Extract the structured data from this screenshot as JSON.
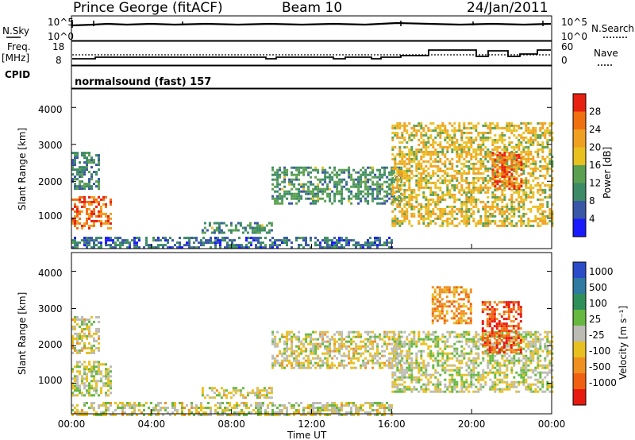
{
  "header": {
    "station": "Prince George (fitACF)",
    "beam": "Beam 10",
    "date": "24/Jan/2011"
  },
  "noise_panel": {
    "left_label": "N.Sky",
    "right_label": "N.Search",
    "left_ticks": [
      "10^5",
      "10^0"
    ],
    "right_ticks": [
      "10^5",
      "10^0"
    ]
  },
  "freq_panel": {
    "left_label_1": "Freq.",
    "left_label_2": "[MHz]",
    "right_label": "Nave",
    "left_ticks": [
      "18",
      "8"
    ],
    "right_ticks": [
      "60",
      "0"
    ]
  },
  "cpid_panel": {
    "label": "CPID",
    "program": "normalsound (fast) 157"
  },
  "axes": {
    "ylabel": "Slant Range [km]",
    "yticks": [
      "1000",
      "2000",
      "3000",
      "4000"
    ],
    "xticks": [
      "00:00",
      "04:00",
      "08:00",
      "12:00",
      "16:00",
      "20:00",
      "00:00"
    ],
    "xlabel": "Time UT"
  },
  "power_colorbar": {
    "label": "Power [dB]",
    "ticks": [
      "4",
      "8",
      "12",
      "16",
      "20",
      "24",
      "28"
    ],
    "colors": [
      "#1a1aff",
      "#3a56a6",
      "#3c8a66",
      "#5aa050",
      "#e8c020",
      "#f0a020",
      "#f07010",
      "#e82010"
    ]
  },
  "velocity_colorbar": {
    "label": "Velocity [m s⁻¹]",
    "ticks": [
      "1000",
      "500",
      "100",
      "25",
      "-25",
      "-100",
      "-500",
      "-1000"
    ],
    "colors": [
      "#2a4cc8",
      "#2e7aa0",
      "#2f8f5a",
      "#66b840",
      "#bcbcb4",
      "#e8c020",
      "#f09020",
      "#f06010",
      "#e81a10"
    ]
  },
  "chart_data": [
    {
      "type": "heatmap",
      "title": "Power",
      "xlabel": "Time UT",
      "ylabel": "Slant Range [km]",
      "xlim": [
        "00:00",
        "24:00"
      ],
      "ylim": [
        180,
        4500
      ],
      "colorbar": "Power [dB]",
      "clim": [
        0,
        30
      ],
      "echo_regions": [
        {
          "t_start": 0.0,
          "t_end": 2.0,
          "r_start": 700,
          "r_end": 1600,
          "value": 26
        },
        {
          "t_start": 0.0,
          "t_end": 1.4,
          "r_start": 1800,
          "r_end": 2800,
          "value": 8
        },
        {
          "t_start": 0.0,
          "t_end": 16.0,
          "r_start": 180,
          "r_end": 500,
          "value": 6
        },
        {
          "t_start": 6.5,
          "t_end": 10.0,
          "r_start": 600,
          "r_end": 900,
          "value": 10
        },
        {
          "t_start": 10.0,
          "t_end": 16.5,
          "r_start": 1400,
          "r_end": 2400,
          "value": 10
        },
        {
          "t_start": 16.0,
          "t_end": 24.0,
          "r_start": 800,
          "r_end": 3600,
          "value": 18
        },
        {
          "t_start": 21.0,
          "t_end": 22.5,
          "r_start": 1800,
          "r_end": 2800,
          "value": 26
        }
      ]
    },
    {
      "type": "heatmap",
      "title": "Velocity",
      "xlabel": "Time UT",
      "ylabel": "Slant Range [km]",
      "xlim": [
        "00:00",
        "24:00"
      ],
      "ylim": [
        180,
        4500
      ],
      "colorbar": "Velocity [m s⁻¹]",
      "clim": [
        -1000,
        1000
      ],
      "echo_regions": [
        {
          "t_start": 0.0,
          "t_end": 2.0,
          "r_start": 700,
          "r_end": 1600,
          "value": 0
        },
        {
          "t_start": 0.0,
          "t_end": 1.4,
          "r_start": 1800,
          "r_end": 2800,
          "value": -100
        },
        {
          "t_start": 0.0,
          "t_end": 16.0,
          "r_start": 180,
          "r_end": 500,
          "value": -50
        },
        {
          "t_start": 6.5,
          "t_end": 10.0,
          "r_start": 600,
          "r_end": 900,
          "value": -100
        },
        {
          "t_start": 10.0,
          "t_end": 16.5,
          "r_start": 1400,
          "r_end": 2400,
          "value": -100
        },
        {
          "t_start": 16.0,
          "t_end": 24.0,
          "r_start": 800,
          "r_end": 2400,
          "value": 0
        },
        {
          "t_start": 18.0,
          "t_end": 20.0,
          "r_start": 2600,
          "r_end": 3600,
          "value": -500
        },
        {
          "t_start": 20.5,
          "t_end": 22.5,
          "r_start": 1800,
          "r_end": 3200,
          "value": -800
        }
      ]
    }
  ]
}
